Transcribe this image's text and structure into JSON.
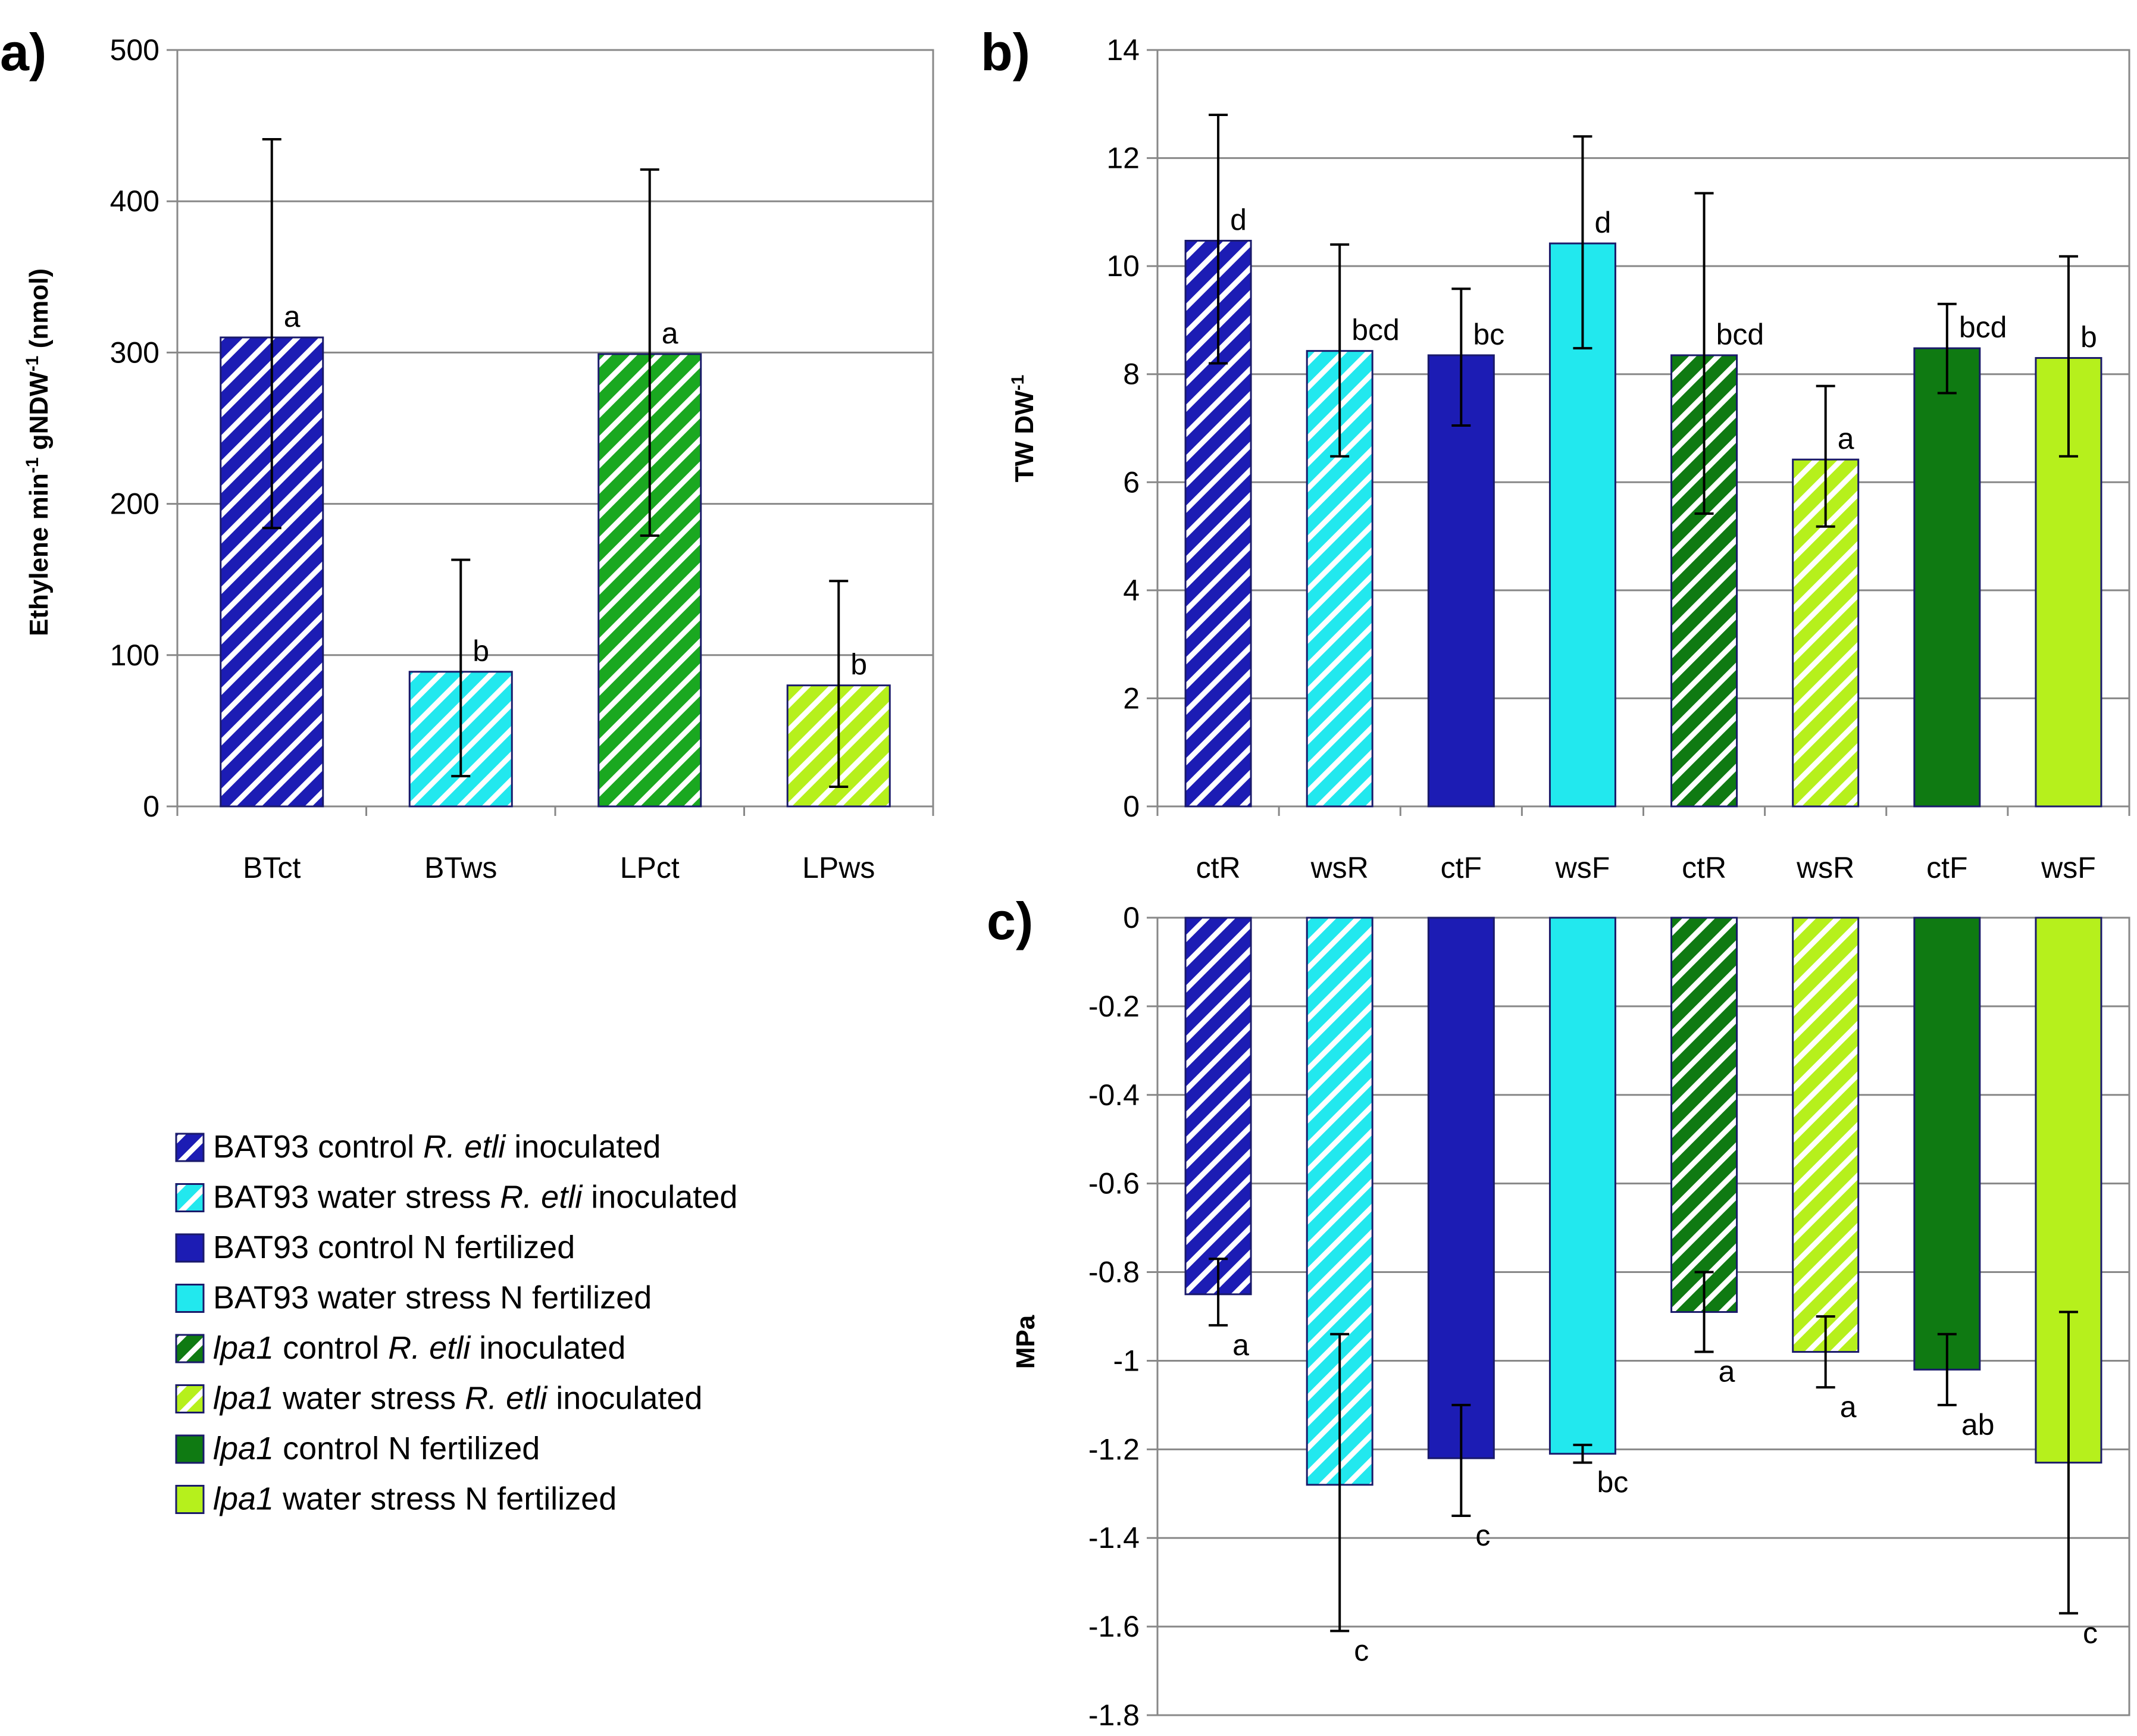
{
  "colors": {
    "bat93_control": "#1c1cb4",
    "bat93_water": "#22e8ee",
    "lpa1_control": "#0f7a12",
    "lpa1_water": "#b6f01c",
    "bat93_control_hatch_rhizobia": "#1c1cb4",
    "lpa1_control_a": "#1aa820"
  },
  "chart_data": [
    {
      "panel": "a)",
      "type": "bar",
      "title": "",
      "xlabel": "",
      "ylabel": "Ethylene min-1 gNDW-1 (nmol)",
      "ylabel_parts": [
        "Ethylene min",
        "-1",
        " gNDW",
        "-1",
        " (nmol)"
      ],
      "ylim": [
        0,
        500
      ],
      "yticks": [
        "0",
        "100",
        "200",
        "300",
        "400",
        "500"
      ],
      "ytick_values": [
        0,
        100,
        200,
        300,
        400,
        500
      ],
      "categories": [
        "BTct",
        "BTws",
        "LPct",
        "LPws"
      ],
      "values": [
        310,
        89,
        299,
        80
      ],
      "err_low": [
        184,
        20,
        179,
        13
      ],
      "err_high": [
        441,
        163,
        421,
        149
      ],
      "letters": [
        "a",
        "b",
        "a",
        "b"
      ],
      "bar_colors": [
        "#1c1cb4",
        "#22e8ee",
        "#1aa820",
        "#b6f01c"
      ],
      "hatched": [
        true,
        true,
        true,
        true
      ]
    },
    {
      "panel": "b)",
      "type": "bar",
      "title": "",
      "xlabel": "",
      "ylabel": "TW DW-1",
      "ylabel_parts": [
        "TW DW",
        "-1"
      ],
      "ylim": [
        0,
        14
      ],
      "yticks": [
        "0",
        "2",
        "4",
        "6",
        "8",
        "10",
        "12",
        "14"
      ],
      "ytick_values": [
        0,
        2,
        4,
        6,
        8,
        10,
        12,
        14
      ],
      "categories": [
        "ctR",
        "wsR",
        "ctF",
        "wsF",
        "ctR",
        "wsR",
        "ctF",
        "wsF"
      ],
      "values": [
        10.47,
        8.43,
        8.35,
        10.42,
        8.35,
        6.42,
        8.48,
        8.3
      ],
      "err_low": [
        8.2,
        6.48,
        7.05,
        8.48,
        5.42,
        5.18,
        7.65,
        6.48
      ],
      "err_high": [
        12.8,
        10.4,
        9.58,
        12.4,
        11.35,
        7.78,
        9.3,
        10.18
      ],
      "letters": [
        "d",
        "bcd",
        "bc",
        "d",
        "bcd",
        "a",
        "bcd",
        "b"
      ],
      "bar_colors": [
        "#1c1cb4",
        "#22e8ee",
        "#1c1cb4",
        "#22e8ee",
        "#0f7a12",
        "#b6f01c",
        "#0f7a12",
        "#b6f01c"
      ],
      "hatched": [
        true,
        true,
        false,
        false,
        true,
        true,
        false,
        false
      ]
    },
    {
      "panel": "c)",
      "type": "bar",
      "title": "",
      "xlabel": "",
      "ylabel": "MPa",
      "ylim": [
        -1.8,
        0
      ],
      "yticks": [
        "0",
        "-0.2",
        "-0.4",
        "-0.6",
        "-0.8",
        "-1",
        "-1.2",
        "-1.4",
        "-1.6",
        "-1.8"
      ],
      "ytick_values": [
        0,
        -0.2,
        -0.4,
        -0.6,
        -0.8,
        -1.0,
        -1.2,
        -1.4,
        -1.6,
        -1.8
      ],
      "categories": [
        "ctR",
        "wsR",
        "ctF",
        "wsF",
        "ctR",
        "wsR",
        "ctF",
        "wsF"
      ],
      "values": [
        -0.85,
        -1.28,
        -1.22,
        -1.21,
        -0.89,
        -0.98,
        -1.02,
        -1.23
      ],
      "err_low": [
        -0.92,
        -1.61,
        -1.35,
        -1.23,
        -0.98,
        -1.06,
        -1.1,
        -1.57
      ],
      "err_high": [
        -0.77,
        -0.94,
        -1.1,
        -1.19,
        -0.8,
        -0.9,
        -0.94,
        -0.89
      ],
      "letters": [
        "a",
        "c",
        "c",
        "bc",
        "a",
        "a",
        "ab",
        "c"
      ],
      "bar_colors": [
        "#1c1cb4",
        "#22e8ee",
        "#1c1cb4",
        "#22e8ee",
        "#0f7a12",
        "#b6f01c",
        "#0f7a12",
        "#b6f01c"
      ],
      "hatched": [
        true,
        true,
        false,
        false,
        true,
        true,
        false,
        false
      ]
    }
  ],
  "legend": {
    "placement": "bottom-left",
    "items": [
      {
        "color": "#1c1cb4",
        "hatched": true,
        "pre": "BAT93 control ",
        "italic": "R. etli",
        "post": " inoculated"
      },
      {
        "color": "#22e8ee",
        "hatched": true,
        "pre": "BAT93 water stress ",
        "italic": "R. etli",
        "post": " inoculated"
      },
      {
        "color": "#1c1cb4",
        "hatched": false,
        "pre": "BAT93 control N fertilized",
        "italic": "",
        "post": ""
      },
      {
        "color": "#22e8ee",
        "hatched": false,
        "pre": "BAT93 water stress N fertilized",
        "italic": "",
        "post": ""
      },
      {
        "color": "#0f7a12",
        "hatched": true,
        "pre": "",
        "italic": "lpa1",
        "post": " control R. etli inoculated",
        "italic2": "R. etli"
      },
      {
        "color": "#b6f01c",
        "hatched": true,
        "pre": "",
        "italic": "lpa1",
        "post": " water stress R. etli inoculated",
        "italic2": "R. etli"
      },
      {
        "color": "#0f7a12",
        "hatched": false,
        "pre": "",
        "italic": "lpa1",
        "post": " control N fertilized"
      },
      {
        "color": "#b6f01c",
        "hatched": false,
        "pre": "",
        "italic": "lpa1",
        "post": " water stress N fertilized"
      }
    ]
  }
}
